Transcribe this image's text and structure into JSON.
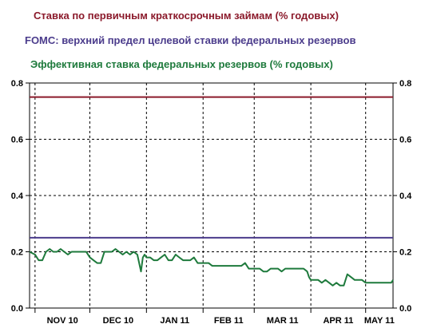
{
  "chart_data": {
    "type": "line",
    "title": "",
    "xlabel": "",
    "ylabel": "",
    "ylim": [
      0,
      0.8
    ],
    "y_ticks": [
      "0.0",
      "0.2",
      "0.4",
      "0.6",
      "0.8"
    ],
    "x_tick_labels": [
      "NOV 10",
      "DEC 10",
      "JAN 11",
      "FEB 11",
      "MAR 11",
      "APR 11",
      "MAY 11"
    ],
    "x_range": [
      "2010-10-29",
      "2011-05-16"
    ],
    "grid": true,
    "legend": "top",
    "series": [
      {
        "name": "Ставка по первичным краткосрочным займам (% годовых)",
        "color": "#8b1a2b",
        "x": [
          "2010-10-29",
          "2011-05-16"
        ],
        "values": [
          0.75,
          0.75
        ]
      },
      {
        "name": "FOMC: верхний предел целевой ставки федеральных резервов",
        "color": "#4b3c8c",
        "x": [
          "2010-10-29",
          "2011-05-16"
        ],
        "values": [
          0.25,
          0.25
        ]
      },
      {
        "name": "Эффективная ставка федеральных резервов (% годовых)",
        "color": "#1e7a3c",
        "x": [
          "2010-10-29",
          "2010-11-01",
          "2010-11-03",
          "2010-11-05",
          "2010-11-07",
          "2010-11-09",
          "2010-11-11",
          "2010-11-13",
          "2010-11-15",
          "2010-11-17",
          "2010-11-19",
          "2010-11-21",
          "2010-11-23",
          "2010-11-25",
          "2010-11-27",
          "2010-11-29",
          "2010-12-01",
          "2010-12-03",
          "2010-12-05",
          "2010-12-07",
          "2010-12-09",
          "2010-12-11",
          "2010-12-13",
          "2010-12-15",
          "2010-12-17",
          "2010-12-19",
          "2010-12-21",
          "2010-12-23",
          "2010-12-25",
          "2010-12-27",
          "2010-12-29",
          "2010-12-30",
          "2010-12-31",
          "2011-01-01",
          "2011-01-03",
          "2011-01-05",
          "2011-01-07",
          "2011-01-09",
          "2011-01-11",
          "2011-01-13",
          "2011-01-15",
          "2011-01-17",
          "2011-01-19",
          "2011-01-21",
          "2011-01-23",
          "2011-01-25",
          "2011-01-27",
          "2011-01-29",
          "2011-01-31",
          "2011-02-02",
          "2011-02-04",
          "2011-02-06",
          "2011-02-08",
          "2011-02-10",
          "2011-02-12",
          "2011-02-14",
          "2011-02-16",
          "2011-02-18",
          "2011-02-20",
          "2011-02-22",
          "2011-02-24",
          "2011-02-26",
          "2011-02-28",
          "2011-03-02",
          "2011-03-04",
          "2011-03-06",
          "2011-03-08",
          "2011-03-10",
          "2011-03-12",
          "2011-03-14",
          "2011-03-16",
          "2011-03-18",
          "2011-03-20",
          "2011-03-22",
          "2011-03-24",
          "2011-03-26",
          "2011-03-28",
          "2011-03-30",
          "2011-03-31",
          "2011-04-01",
          "2011-04-03",
          "2011-04-05",
          "2011-04-07",
          "2011-04-09",
          "2011-04-11",
          "2011-04-13",
          "2011-04-15",
          "2011-04-17",
          "2011-04-19",
          "2011-04-21",
          "2011-04-23",
          "2011-04-25",
          "2011-04-27",
          "2011-04-29",
          "2011-05-01",
          "2011-05-03",
          "2011-05-05",
          "2011-05-07",
          "2011-05-09",
          "2011-05-11",
          "2011-05-13",
          "2011-05-15",
          "2011-05-16"
        ],
        "values": [
          0.2,
          0.19,
          0.17,
          0.17,
          0.2,
          0.21,
          0.2,
          0.2,
          0.21,
          0.2,
          0.19,
          0.2,
          0.2,
          0.2,
          0.2,
          0.2,
          0.18,
          0.17,
          0.16,
          0.16,
          0.2,
          0.2,
          0.2,
          0.21,
          0.2,
          0.19,
          0.2,
          0.19,
          0.2,
          0.19,
          0.13,
          0.18,
          0.19,
          0.18,
          0.18,
          0.17,
          0.17,
          0.18,
          0.19,
          0.17,
          0.17,
          0.19,
          0.18,
          0.17,
          0.17,
          0.17,
          0.18,
          0.16,
          0.16,
          0.16,
          0.16,
          0.15,
          0.15,
          0.15,
          0.15,
          0.15,
          0.15,
          0.15,
          0.15,
          0.15,
          0.16,
          0.14,
          0.14,
          0.14,
          0.14,
          0.13,
          0.13,
          0.14,
          0.14,
          0.14,
          0.13,
          0.14,
          0.14,
          0.14,
          0.14,
          0.14,
          0.14,
          0.13,
          0.11,
          0.1,
          0.1,
          0.1,
          0.09,
          0.1,
          0.09,
          0.08,
          0.09,
          0.08,
          0.08,
          0.12,
          0.11,
          0.1,
          0.1,
          0.1,
          0.09,
          0.09,
          0.09,
          0.09,
          0.09,
          0.09,
          0.09,
          0.09,
          0.1
        ]
      }
    ]
  }
}
